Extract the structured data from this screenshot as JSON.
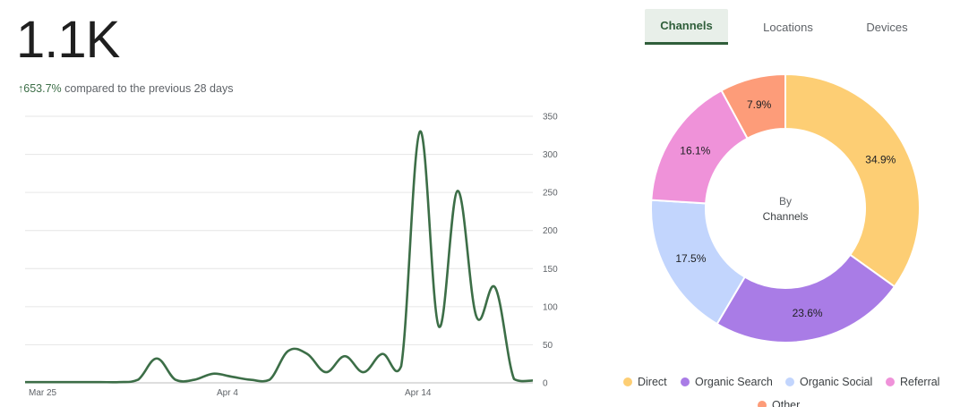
{
  "metric": {
    "value": "1.1K",
    "change": "653.7%",
    "change_arrow": "↑",
    "comparison_text": "compared to the previous 28 days"
  },
  "tabs": [
    {
      "label": "Channels",
      "active": true
    },
    {
      "label": "Locations",
      "active": false
    },
    {
      "label": "Devices",
      "active": false
    }
  ],
  "colors": {
    "line": "#3c6e47",
    "grid": "#e6e6e6",
    "direct": "#fdce74",
    "organic_search": "#a97ce6",
    "organic_social": "#c2d5fd",
    "referral": "#ef92d9",
    "other": "#fd9c79"
  },
  "chart_data": [
    {
      "type": "line",
      "x_tick_labels": [
        "Mar 25",
        "Apr 4",
        "Apr 14"
      ],
      "x_tick_index": [
        0,
        10,
        20
      ],
      "y_ticks": [
        0,
        50,
        100,
        150,
        200,
        250,
        300,
        350
      ],
      "ylim": [
        0,
        350
      ],
      "grid": true,
      "series": [
        {
          "values": [
            1,
            1,
            1,
            1,
            1,
            1,
            4,
            32,
            4,
            4,
            12,
            8,
            4,
            4,
            42,
            38,
            14,
            35,
            14,
            38,
            22,
            330,
            74,
            252,
            87,
            125,
            5,
            3
          ]
        }
      ]
    },
    {
      "type": "pie",
      "center_label_top": "By",
      "center_label_bottom": "Channels",
      "slices": [
        {
          "name": "Direct",
          "value": 34.9,
          "label": "34.9%",
          "color": "#fdce74"
        },
        {
          "name": "Organic Search",
          "value": 23.6,
          "label": "23.6%",
          "color": "#a97ce6"
        },
        {
          "name": "Organic Social",
          "value": 17.5,
          "label": "17.5%",
          "color": "#c2d5fd"
        },
        {
          "name": "Referral",
          "value": 16.1,
          "label": "16.1%",
          "color": "#ef92d9"
        },
        {
          "name": "Other",
          "value": 7.9,
          "label": "7.9%",
          "color": "#fd9c79"
        }
      ],
      "legend_position": "bottom"
    }
  ]
}
